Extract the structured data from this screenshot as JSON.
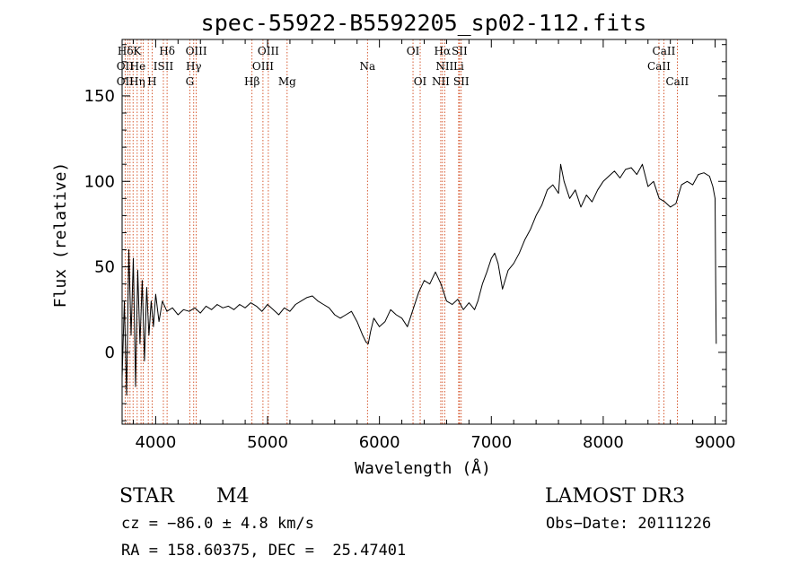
{
  "chart_data": {
    "type": "line",
    "title": "spec-55922-B5592205_sp02-112.fits",
    "xlabel": "Wavelength (Å)",
    "ylabel": "Flux (relative)",
    "xlim": [
      3700,
      9100
    ],
    "ylim": [
      -42,
      183
    ],
    "xticks": [
      4000,
      5000,
      6000,
      7000,
      8000,
      9000
    ],
    "yticks": [
      0,
      50,
      100,
      150
    ],
    "grid": false,
    "series": [
      {
        "x": [
          3700,
          3720,
          3740,
          3760,
          3780,
          3800,
          3820,
          3840,
          3860,
          3880,
          3900,
          3920,
          3940,
          3960,
          3980,
          4000,
          4030,
          4060,
          4100,
          4150,
          4200,
          4250,
          4300,
          4350,
          4400,
          4450,
          4500,
          4550,
          4600,
          4650,
          4700,
          4750,
          4800,
          4850,
          4900,
          4950,
          5000,
          5050,
          5100,
          5150,
          5200,
          5250,
          5300,
          5350,
          5400,
          5450,
          5500,
          5550,
          5600,
          5650,
          5700,
          5750,
          5800,
          5850,
          5880,
          5900,
          5920,
          5950,
          6000,
          6050,
          6100,
          6150,
          6200,
          6250,
          6300,
          6350,
          6400,
          6450,
          6500,
          6550,
          6600,
          6650,
          6700,
          6750,
          6800,
          6850,
          6880,
          6920,
          6960,
          7000,
          7030,
          7060,
          7100,
          7150,
          7200,
          7250,
          7300,
          7350,
          7400,
          7450,
          7500,
          7550,
          7600,
          7620,
          7650,
          7700,
          7750,
          7800,
          7850,
          7900,
          7950,
          8000,
          8050,
          8100,
          8150,
          8200,
          8250,
          8300,
          8350,
          8400,
          8450,
          8500,
          8550,
          8600,
          8650,
          8700,
          8750,
          8800,
          8850,
          8900,
          8950,
          8980,
          9000,
          9005,
          9010
        ],
        "values": [
          -15,
          30,
          -25,
          60,
          10,
          55,
          -20,
          48,
          5,
          42,
          -5,
          38,
          10,
          30,
          15,
          34,
          18,
          30,
          24,
          26,
          22,
          25,
          24,
          26,
          23,
          27,
          25,
          28,
          26,
          27,
          25,
          28,
          26,
          29,
          27,
          24,
          28,
          25,
          22,
          26,
          24,
          28,
          30,
          32,
          33,
          30,
          28,
          26,
          22,
          20,
          22,
          24,
          18,
          10,
          6,
          5,
          12,
          20,
          15,
          18,
          25,
          22,
          20,
          15,
          25,
          35,
          42,
          40,
          47,
          40,
          30,
          28,
          31,
          25,
          29,
          25,
          30,
          40,
          47,
          55,
          58,
          52,
          37,
          48,
          52,
          58,
          66,
          72,
          80,
          86,
          95,
          98,
          93,
          110,
          100,
          90,
          95,
          85,
          92,
          88,
          95,
          100,
          103,
          106,
          102,
          107,
          108,
          104,
          110,
          97,
          100,
          90,
          88,
          85,
          87,
          98,
          100,
          98,
          104,
          105,
          103,
          97,
          90,
          40,
          5
        ]
      }
    ],
    "line_color": "#000000",
    "emission_line_color": "#cc3300",
    "annotations": [
      {
        "label": "Hδ",
        "x": 3730,
        "row": 0
      },
      {
        "label": "K",
        "x": 3834,
        "row": 0
      },
      {
        "label": "Hδ",
        "x": 4102,
        "row": 0
      },
      {
        "label": "OIII",
        "x": 4363,
        "row": 0
      },
      {
        "label": "OIII",
        "x": 5007,
        "row": 0
      },
      {
        "label": "OI",
        "x": 6300,
        "row": 0
      },
      {
        "label": "Hα",
        "x": 6563,
        "row": 0
      },
      {
        "label": "SII",
        "x": 6716,
        "row": 0
      },
      {
        "label": "CaII",
        "x": 8542,
        "row": 0
      },
      {
        "label": "OII",
        "x": 3727,
        "row": 1
      },
      {
        "label": "He",
        "x": 3840,
        "row": 1
      },
      {
        "label": "ISII",
        "x": 4069,
        "row": 1
      },
      {
        "label": "Hγ",
        "x": 4340,
        "row": 1
      },
      {
        "label": "OIII",
        "x": 4959,
        "row": 1
      },
      {
        "label": "Na",
        "x": 5893,
        "row": 1
      },
      {
        "label": "NII",
        "x": 6583,
        "row": 1
      },
      {
        "label": "Li",
        "x": 6708,
        "row": 1
      },
      {
        "label": "CaII",
        "x": 8498,
        "row": 1
      },
      {
        "label": "OII",
        "x": 3727,
        "row": 2
      },
      {
        "label": "Hη",
        "x": 3835,
        "row": 2
      },
      {
        "label": "H",
        "x": 3968,
        "row": 2
      },
      {
        "label": "G",
        "x": 4305,
        "row": 2
      },
      {
        "label": "Hβ",
        "x": 4861,
        "row": 2
      },
      {
        "label": "Mg",
        "x": 5175,
        "row": 2
      },
      {
        "label": "OI",
        "x": 6364,
        "row": 2
      },
      {
        "label": "NII",
        "x": 6548,
        "row": 2
      },
      {
        "label": "SII",
        "x": 6731,
        "row": 2
      },
      {
        "label": "CaII",
        "x": 8662,
        "row": 2
      }
    ],
    "line_markers": [
      3727,
      3750,
      3771,
      3798,
      3835,
      3869,
      3889,
      3934,
      3968,
      4069,
      4102,
      4305,
      4340,
      4363,
      4861,
      4959,
      5007,
      5175,
      5893,
      6300,
      6364,
      6548,
      6563,
      6583,
      6708,
      6716,
      6731,
      8498,
      8542,
      8662
    ]
  },
  "info": {
    "object_class": "STAR",
    "subclass": "M4",
    "survey": "LAMOST DR3",
    "cz": "cz = −86.0 ± 4.8 km/s",
    "obs_date": "Obs−Date: 20111226",
    "coords": "RA = 158.60375, DEC =  25.47401"
  }
}
